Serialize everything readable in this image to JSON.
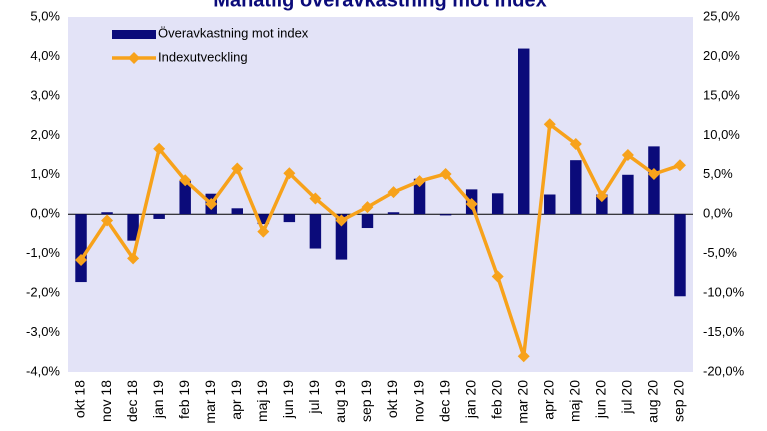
{
  "chart_data": {
    "type": "bar_line",
    "title": "Månatlig överavkastning mot index",
    "categories": [
      "okt 18",
      "nov 18",
      "dec 18",
      "jan 19",
      "feb 19",
      "mar 19",
      "apr 19",
      "maj 19",
      "jun 19",
      "jul 19",
      "aug 19",
      "sep 19",
      "okt 19",
      "nov 19",
      "dec 19",
      "jan 20",
      "feb 20",
      "mar 20",
      "apr 20",
      "maj 20",
      "jun 20",
      "jul 20",
      "aug 20",
      "sep 20"
    ],
    "series": [
      {
        "name": "Överavkastning mot index",
        "color": "#0b0b7a",
        "type": "bar",
        "values": [
          -1.72,
          0.05,
          -0.67,
          -0.12,
          0.85,
          0.52,
          0.15,
          -0.25,
          -0.2,
          -0.87,
          -1.15,
          -0.35,
          0.05,
          0.9,
          -0.03,
          0.63,
          0.53,
          4.2,
          0.5,
          1.37,
          0.5,
          1.0,
          1.72,
          -2.08
        ]
      },
      {
        "name": "Indexutveckling",
        "color": "#f7a21b",
        "type": "line",
        "axis": "y2",
        "values": [
          -5.8,
          -0.8,
          -5.6,
          8.3,
          4.3,
          1.3,
          5.8,
          -2.2,
          5.2,
          2.0,
          -0.8,
          0.9,
          2.8,
          4.2,
          5.1,
          1.3,
          -7.9,
          -18.0,
          11.4,
          8.9,
          2.3,
          7.5,
          5.1,
          6.2
        ]
      }
    ],
    "ylim": [
      -4,
      5
    ],
    "yticks": [
      {
        "value": -4,
        "label": "-4,0%"
      },
      {
        "value": -3,
        "label": "-3,0%"
      },
      {
        "value": -2,
        "label": "-2,0%"
      },
      {
        "value": -1,
        "label": "-1,0%"
      },
      {
        "value": 0,
        "label": "0,0%"
      },
      {
        "value": 1,
        "label": "1,0%"
      },
      {
        "value": 2,
        "label": "2,0%"
      },
      {
        "value": 3,
        "label": "3,0%"
      },
      {
        "value": 4,
        "label": "4,0%"
      },
      {
        "value": 5,
        "label": "5,0%"
      }
    ],
    "y2lim": [
      -20,
      25
    ],
    "y2ticks": [
      {
        "value": -20,
        "label": "-20,0%"
      },
      {
        "value": -15,
        "label": "-15,0%"
      },
      {
        "value": -10,
        "label": "-10,0%"
      },
      {
        "value": -5,
        "label": "-5,0%"
      },
      {
        "value": 0,
        "label": "0,0%"
      },
      {
        "value": 5,
        "label": "5,0%"
      },
      {
        "value": 10,
        "label": "10,0%"
      },
      {
        "value": 15,
        "label": "15,0%"
      },
      {
        "value": 20,
        "label": "20,0%"
      },
      {
        "value": 25,
        "label": "25,0%"
      }
    ],
    "legend": "top-left"
  }
}
